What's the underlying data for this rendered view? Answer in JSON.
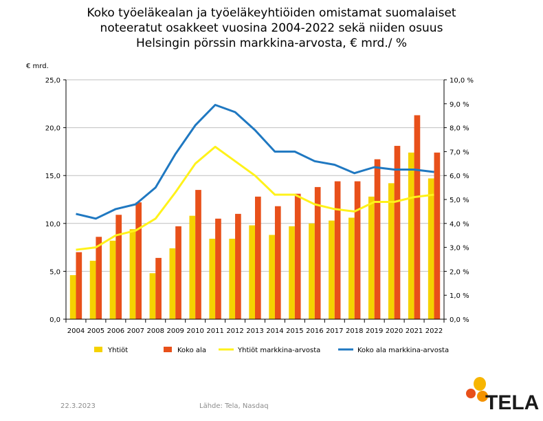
{
  "title_lines": [
    "Koko työeläkealan ja työeläkeyhtiöiden omistamat suomalaiset",
    "noteeratut osakkeet vuosina 2004-2022 sekä niiden osuus",
    "Helsingin pörssin markkina-arvosta, € mrd./ %"
  ],
  "footer": {
    "date": "22.3.2023",
    "source": "Lähde: Tela, Nasdaq"
  },
  "logo": {
    "text": "TELA",
    "colors": [
      "#F7B500",
      "#E8501A",
      "#F39200"
    ]
  },
  "chart_data": {
    "type": "bar",
    "left_axis_unit": "€ mrd.",
    "categories": [
      "2004",
      "2005",
      "2006",
      "2007",
      "2008",
      "2009",
      "2010",
      "2011",
      "2012",
      "2013",
      "2014",
      "2015",
      "2016",
      "2017",
      "2018",
      "2019",
      "2020",
      "2021",
      "2022"
    ],
    "ylim": [
      0,
      25
    ],
    "yticks": [
      "0,0",
      "5,0",
      "10,0",
      "15,0",
      "20,0",
      "25,0"
    ],
    "y2lim": [
      0,
      10
    ],
    "y2ticks": [
      "0,0 %",
      "1,0 %",
      "2,0 %",
      "3,0 %",
      "4,0 %",
      "5,0 %",
      "6,0 %",
      "7,0 %",
      "8,0 %",
      "9,0 %",
      "10,0 %"
    ],
    "grid": true,
    "legend_position": "bottom",
    "bar_series": [
      {
        "name": "Yhtiöt",
        "color": "#F5D200",
        "values": [
          4.6,
          6.1,
          8.2,
          9.4,
          4.8,
          7.4,
          10.8,
          8.4,
          8.4,
          9.8,
          8.8,
          9.7,
          10.0,
          10.3,
          10.6,
          12.8,
          14.2,
          17.4,
          14.7
        ]
      },
      {
        "name": "Koko ala",
        "color": "#E8501A",
        "values": [
          7.0,
          8.6,
          10.9,
          12.2,
          6.4,
          9.7,
          13.5,
          10.5,
          11.0,
          12.8,
          11.8,
          13.1,
          13.8,
          14.4,
          14.4,
          16.7,
          18.1,
          21.3,
          17.4
        ]
      }
    ],
    "line_series": [
      {
        "name": "Yhtiöt markkina-arvosta",
        "color": "#FFF21A",
        "axis": "right",
        "values": [
          2.9,
          3.0,
          3.5,
          3.7,
          4.2,
          5.3,
          6.5,
          7.2,
          6.6,
          6.0,
          5.2,
          5.2,
          4.8,
          4.6,
          4.5,
          4.9,
          4.9,
          5.1,
          5.2
        ]
      },
      {
        "name": "Koko ala markkina-arvosta",
        "color": "#1F78C1",
        "axis": "right",
        "values": [
          4.4,
          4.2,
          4.6,
          4.8,
          5.5,
          6.9,
          8.1,
          8.95,
          8.65,
          7.9,
          7.0,
          7.0,
          6.6,
          6.45,
          6.1,
          6.35,
          6.25,
          6.25,
          6.15
        ]
      }
    ]
  }
}
